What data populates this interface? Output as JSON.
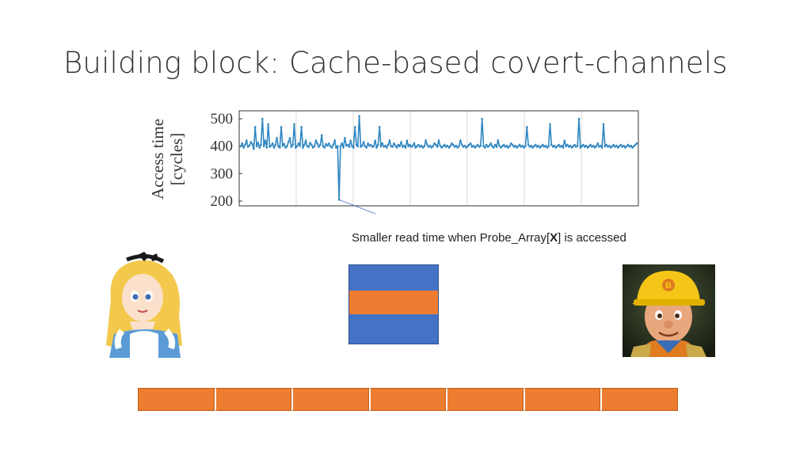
{
  "slide": {
    "title": "Building block: Cache-based covert-channels"
  },
  "chart_data": {
    "type": "line",
    "title": "",
    "xlabel": "",
    "ylabel": "Access time [cycles]",
    "ylabel_lines": [
      "Access time",
      "[cycles]"
    ],
    "ylim": [
      200,
      500
    ],
    "yticks": [
      500,
      400,
      300,
      200
    ],
    "grid": "vertical",
    "series": [
      {
        "values": [
          400,
          410,
          395,
          405,
          420,
          398,
          402,
          415,
          408,
          390,
          470,
          400,
          412,
          395,
          405,
          500,
          400,
          420,
          395,
          480,
          398,
          402,
          410,
          395,
          405,
          430,
          400,
          395,
          470,
          402,
          408,
          395,
          400,
          415,
          430,
          398,
          405,
          480,
          395,
          400,
          410,
          402,
          470,
          395,
          405,
          420,
          400,
          398,
          412,
          405,
          395,
          400,
          420,
          410,
          398,
          405,
          440,
          400,
          395,
          408,
          402,
          410,
          400,
          395,
          405,
          420,
          395,
          400,
          205,
          400,
          410,
          395,
          430,
          402,
          405,
          398,
          420,
          400,
          395,
          470,
          405,
          400,
          510,
          398,
          402,
          415,
          400,
          395,
          410,
          402,
          405,
          398,
          400,
          420,
          395,
          405,
          470,
          400,
          410,
          398,
          402,
          395,
          405,
          420,
          400,
          398,
          410,
          402,
          395,
          405,
          400,
          415,
          398,
          402,
          395,
          420,
          400,
          405,
          398,
          402,
          410,
          395,
          400,
          405,
          398,
          402,
          395,
          400,
          420,
          405,
          398,
          402,
          395,
          400,
          410,
          405,
          398,
          420,
          402,
          395,
          400,
          405,
          398,
          402,
          395,
          400,
          410,
          405,
          398,
          402,
          395,
          400,
          420,
          405,
          398,
          402,
          395,
          400,
          405,
          410,
          398,
          402,
          395,
          400,
          405,
          398,
          402,
          500,
          400,
          395,
          405,
          398,
          402,
          410,
          400,
          395,
          405,
          398,
          420,
          402,
          395,
          400,
          405,
          398,
          402,
          395,
          400,
          410,
          405,
          398,
          402,
          395,
          400,
          405,
          398,
          402,
          395,
          400,
          470,
          405,
          398,
          402,
          395,
          400,
          405,
          398,
          402,
          395,
          400,
          405,
          398,
          402,
          395,
          400,
          480,
          405,
          398,
          402,
          395,
          400,
          405,
          398,
          402,
          395,
          420,
          400,
          405,
          398,
          402,
          395,
          400,
          405,
          398,
          402,
          500,
          395,
          400,
          405,
          398,
          402,
          395,
          400,
          405,
          398,
          402,
          395,
          400,
          410,
          398,
          402,
          395,
          480,
          400,
          405,
          398,
          402,
          395,
          400,
          405,
          398,
          402,
          395,
          400,
          405,
          398,
          402,
          395,
          400,
          405,
          398,
          402,
          395,
          400,
          405,
          410
        ]
      }
    ]
  },
  "annotation": {
    "prefix": "Smaller read time when Probe_Array[",
    "bold": "X",
    "suffix": "] is accessed"
  },
  "cache_block": {
    "line_color": "#ed7d31",
    "block_color": "#4472c4"
  },
  "probe_array": {
    "cell_count": 7,
    "color": "#ed7d31"
  },
  "characters": {
    "sender": "alice-icon",
    "receiver": "bob-the-builder-icon"
  }
}
